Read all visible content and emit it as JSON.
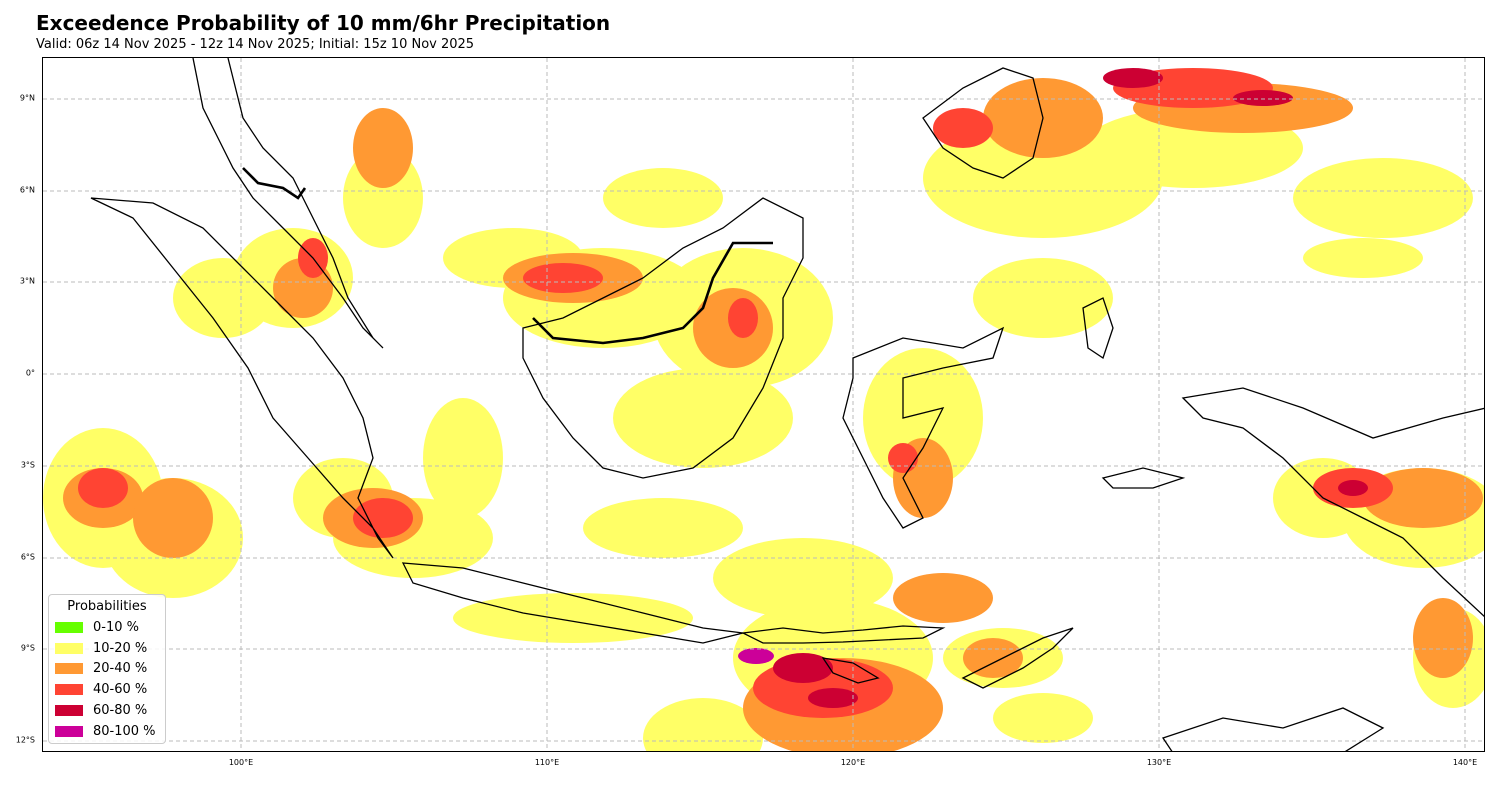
{
  "title": "Exceedence Probability of 10 mm/6hr Precipitation",
  "subtitle": "Valid: 06z 14 Nov 2025 - 12z 14 Nov 2025; Initial: 15z 10 Nov 2025",
  "map": {
    "lat_ticks": [
      {
        "label": "9°N",
        "value": 9
      },
      {
        "label": "6°N",
        "value": 6
      },
      {
        "label": "3°N",
        "value": 3
      },
      {
        "label": "0°",
        "value": 0
      },
      {
        "label": "3°S",
        "value": -3
      },
      {
        "label": "6°S",
        "value": -6
      },
      {
        "label": "9°S",
        "value": -9
      },
      {
        "label": "12°S",
        "value": -12
      }
    ],
    "lon_ticks": [
      {
        "label": "100°E",
        "value": 100
      },
      {
        "label": "110°E",
        "value": 110
      },
      {
        "label": "120°E",
        "value": 120
      },
      {
        "label": "130°E",
        "value": 130
      },
      {
        "label": "140°E",
        "value": 140
      }
    ],
    "extent": {
      "lon_min": 93.5,
      "lon_max": 140.7,
      "lat_min": -12.4,
      "lat_max": 10.3
    }
  },
  "legend": {
    "title": "Probabilities",
    "items": [
      {
        "label": "0-10 %",
        "color": "#66ff00"
      },
      {
        "label": "10-20 %",
        "color": "#ffff66"
      },
      {
        "label": "20-40 %",
        "color": "#ff9933"
      },
      {
        "label": "40-60 %",
        "color": "#ff4433"
      },
      {
        "label": "60-80 %",
        "color": "#cc0033"
      },
      {
        "label": "80-100 %",
        "color": "#cc0099"
      }
    ]
  }
}
